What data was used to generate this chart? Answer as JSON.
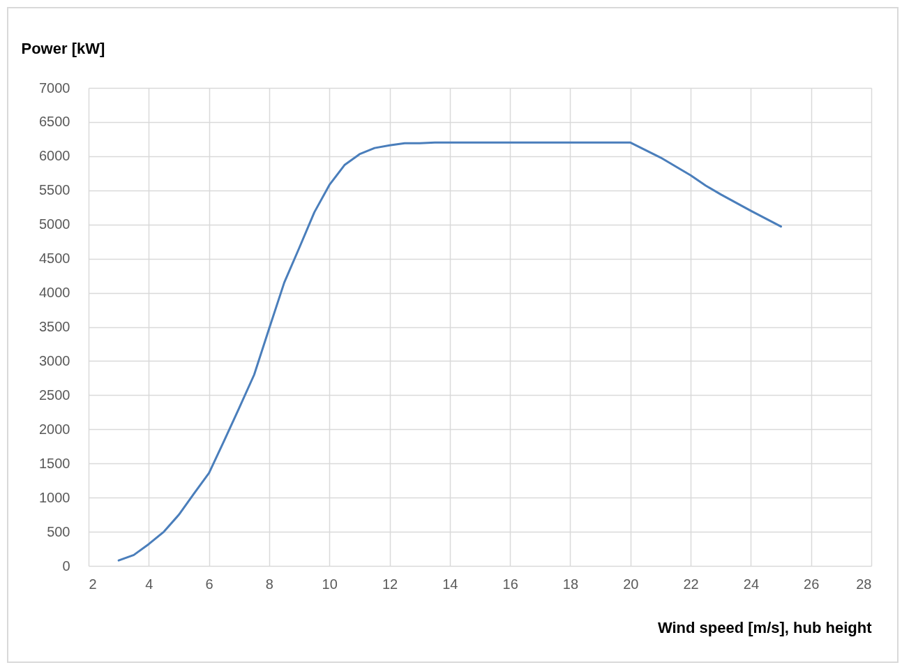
{
  "chart_data": {
    "type": "line",
    "xlabel": "Wind speed [m/s], hub height",
    "ylabel": "Power [kW]",
    "x": [
      3,
      3.5,
      4,
      4.5,
      5,
      5.5,
      6,
      6.5,
      7,
      7.5,
      8,
      8.5,
      9,
      9.5,
      10,
      10.5,
      11,
      11.5,
      12,
      12.5,
      13,
      13.5,
      14,
      15,
      16,
      17,
      18,
      19,
      20,
      21,
      22,
      22.5,
      23,
      24,
      25
    ],
    "series": [
      {
        "color": "#4a7ebb",
        "values": [
          80,
          160,
          320,
          500,
          750,
          1060,
          1360,
          1830,
          2310,
          2800,
          3480,
          4150,
          4660,
          5180,
          5580,
          5870,
          6030,
          6120,
          6160,
          6190,
          6190,
          6200,
          6200,
          6200,
          6200,
          6200,
          6200,
          6200,
          6200,
          5980,
          5720,
          5570,
          5440,
          5200,
          4970
        ]
      }
    ],
    "xlim": [
      2,
      28
    ],
    "xticks": [
      2,
      4,
      6,
      8,
      10,
      12,
      14,
      16,
      18,
      20,
      22,
      24,
      26,
      28
    ],
    "ylim": [
      0,
      7000
    ],
    "yticks": [
      0,
      500,
      1000,
      1500,
      2000,
      2500,
      3000,
      3500,
      4000,
      4500,
      5000,
      5500,
      6000,
      6500,
      7000
    ],
    "grid": true,
    "legend": false,
    "marker": "none",
    "line_style": "solid"
  }
}
